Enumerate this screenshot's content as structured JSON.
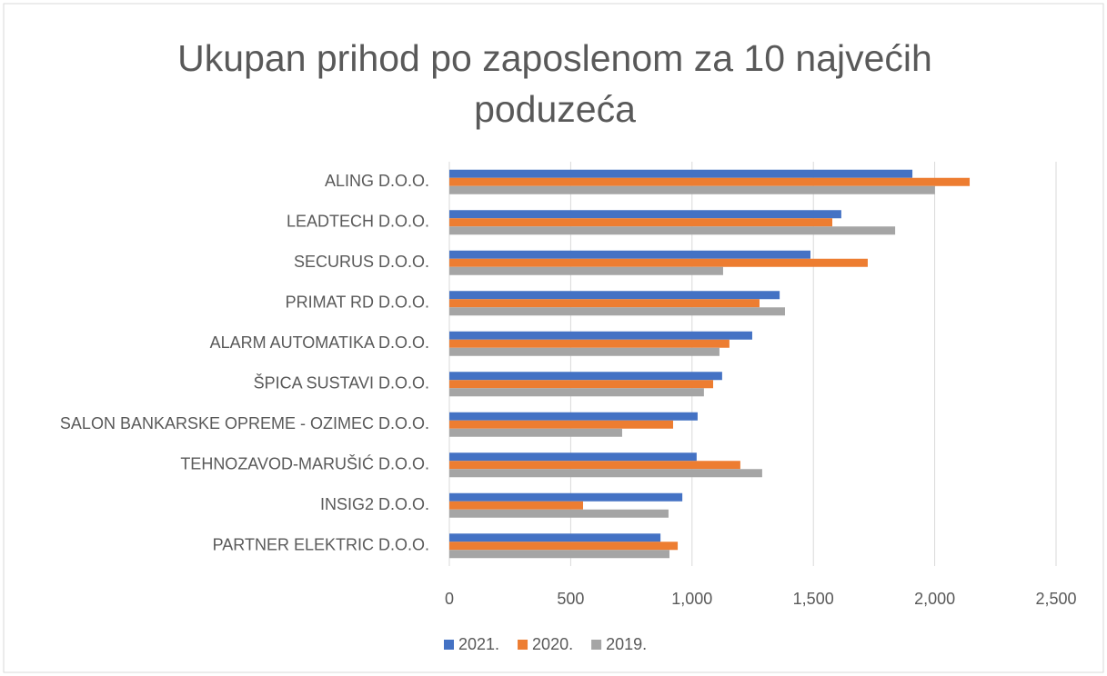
{
  "chart_data": {
    "type": "barh",
    "title": "Ukupan prihod po zaposlenom za 10 najvećih poduzeća",
    "categories": [
      "ALING D.O.O.",
      "LEADTECH D.O.O.",
      "SECURUS D.O.O.",
      "PRIMAT RD D.O.O.",
      "ALARM AUTOMATIKA D.O.O.",
      "ŠPICA SUSTAVI D.O.O.",
      "SALON BANKARSKE OPREME - OZIMEC D.O.O.",
      "TEHNOZAVOD-MARUŠIĆ D.O.O.",
      "INSIG2 D.O.O.",
      "PARTNER ELEKTRIC D.O.O."
    ],
    "series": [
      {
        "name": "2021.",
        "color": "#4472c4",
        "values": [
          1908,
          1615,
          1488,
          1361,
          1248,
          1124,
          1023,
          1019,
          960,
          870
        ]
      },
      {
        "name": "2020.",
        "color": "#ed7d31",
        "values": [
          2144,
          1578,
          1724,
          1278,
          1154,
          1087,
          922,
          1199,
          551,
          941
        ]
      },
      {
        "name": "2019.",
        "color": "#a5a5a5",
        "values": [
          2001,
          1837,
          1128,
          1383,
          1113,
          1049,
          712,
          1289,
          903,
          907
        ]
      }
    ],
    "xlim": [
      0,
      2500
    ],
    "xticks": [
      0,
      500,
      {
        "value": 1000,
        "label": "1,000"
      },
      {
        "value": 1500,
        "label": "1,500"
      },
      {
        "value": 2000,
        "label": "2,000"
      },
      {
        "value": 2500,
        "label": "2,500"
      }
    ],
    "grid": true,
    "legend": "bottom"
  }
}
